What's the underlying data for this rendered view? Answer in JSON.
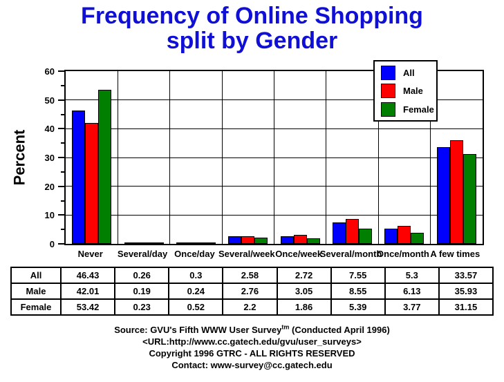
{
  "title": {
    "line1": "Frequency of Online Shopping",
    "line2": "split by Gender"
  },
  "chart_data": {
    "type": "bar",
    "title": "Frequency of Online Shopping split by Gender",
    "xlabel": "",
    "ylabel": "Percent",
    "ylim": [
      0,
      60
    ],
    "ytick_major": 10,
    "ytick_minor": 5,
    "grid": true,
    "legend_position": "top-right-inside",
    "categories": [
      "Never",
      "Several/day",
      "Once/day",
      "Several/week",
      "Once/week",
      "Several/month",
      "Once/month",
      "A few times"
    ],
    "series": [
      {
        "name": "All",
        "color": "#0000ff",
        "values": [
          46.43,
          0.26,
          0.3,
          2.58,
          2.72,
          7.55,
          5.3,
          33.57
        ]
      },
      {
        "name": "Male",
        "color": "#ff0000",
        "values": [
          42.01,
          0.19,
          0.24,
          2.76,
          3.05,
          8.55,
          6.13,
          35.93
        ]
      },
      {
        "name": "Female",
        "color": "#007f00",
        "values": [
          53.42,
          0.23,
          0.52,
          2.2,
          1.86,
          5.39,
          3.77,
          31.15
        ]
      }
    ]
  },
  "table": {
    "rows": [
      {
        "label": "All",
        "values": [
          "46.43",
          "0.26",
          "0.3",
          "2.58",
          "2.72",
          "7.55",
          "5.3",
          "33.57"
        ]
      },
      {
        "label": "Male",
        "values": [
          "42.01",
          "0.19",
          "0.24",
          "2.76",
          "3.05",
          "8.55",
          "6.13",
          "35.93"
        ]
      },
      {
        "label": "Female",
        "values": [
          "53.42",
          "0.23",
          "0.52",
          "2.2",
          "1.86",
          "5.39",
          "3.77",
          "31.15"
        ]
      }
    ]
  },
  "footer": {
    "source_prefix": "Source: GVU's Fifth WWW User Survey",
    "source_sup": "tm",
    "source_suffix": "  (Conducted April 1996)",
    "url_line": "<URL:http://www.cc.gatech.edu/gvu/user_surveys>",
    "copyright_line": "Copyright 1996 GTRC -  ALL RIGHTS RESERVED",
    "contact_line": "Contact: www-survey@cc.gatech.edu"
  },
  "colors": {
    "title_blue": "#0f0fd6",
    "all_blue": "#0000ff",
    "male_red": "#ff0000",
    "female_green": "#007f00"
  }
}
